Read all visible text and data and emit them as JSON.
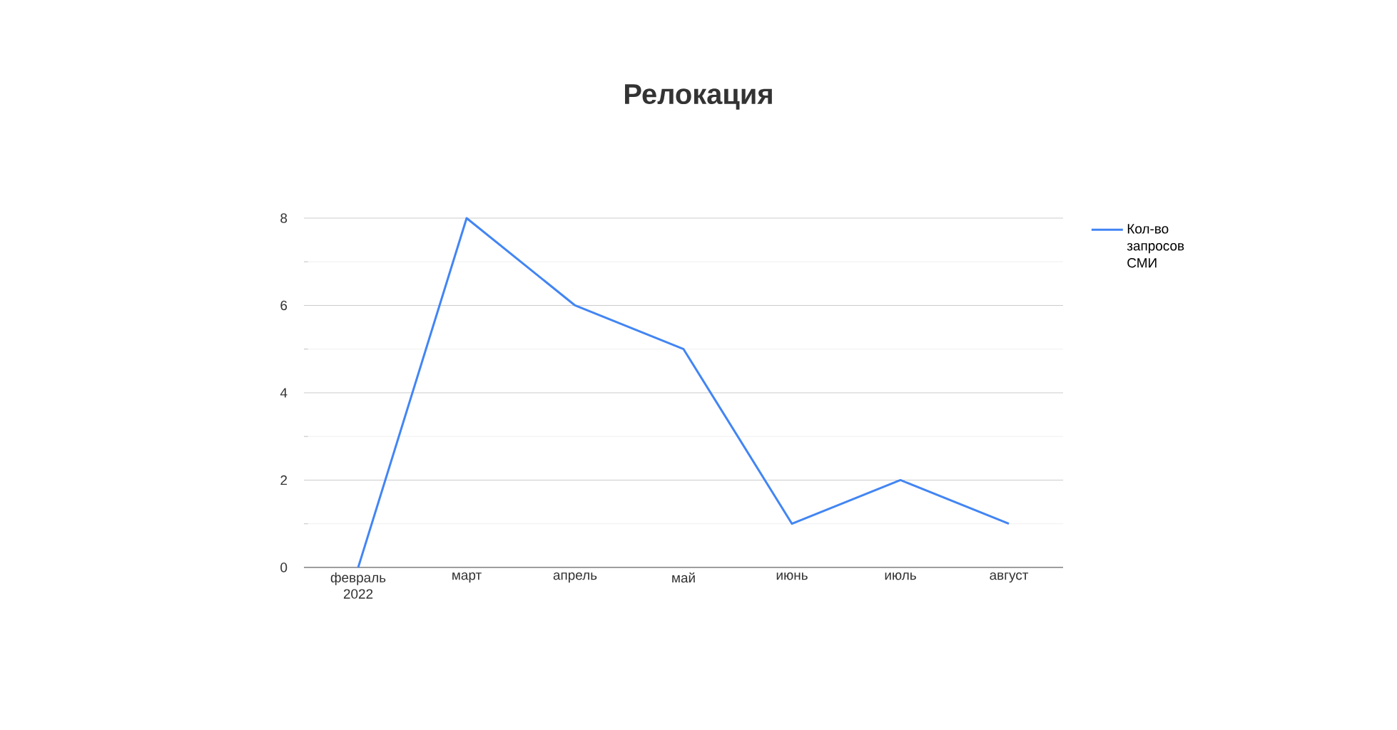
{
  "chart_data": {
    "type": "line",
    "title": "Релокация",
    "categories": [
      "февраль 2022",
      "март",
      "апрель",
      "май",
      "июнь",
      "июль",
      "август"
    ],
    "series": [
      {
        "name": "Кол-во запросов СМИ",
        "color": "#4285f4",
        "values": [
          0,
          8,
          6,
          5,
          1,
          2,
          1
        ]
      }
    ],
    "ylim": [
      0,
      8
    ],
    "yticks": [
      0,
      2,
      4,
      6,
      8
    ],
    "grid": "y",
    "legend": "right",
    "marker": "none",
    "line_style": "solid"
  }
}
